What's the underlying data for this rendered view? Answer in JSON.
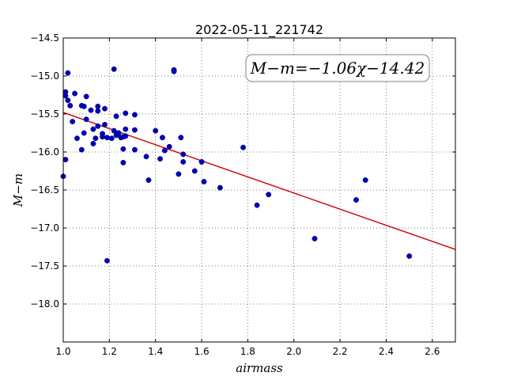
{
  "chart_data": {
    "type": "scatter",
    "title": "2022-05-11_221742",
    "xlabel": "airmass",
    "ylabel": "M−m",
    "xlim": [
      1.0,
      2.7
    ],
    "ylim": [
      -18.5,
      -14.5
    ],
    "y_inverted": true,
    "grid": true,
    "x_ticks": [
      1.0,
      1.2,
      1.4,
      1.6,
      1.8,
      2.0,
      2.2,
      2.4,
      2.6
    ],
    "x_tick_labels": [
      "1.0",
      "1.2",
      "1.4",
      "1.6",
      "1.8",
      "2.0",
      "2.2",
      "2.4",
      "2.6"
    ],
    "y_ticks": [
      -14.5,
      -15.0,
      -15.5,
      -16.0,
      -16.5,
      -17.0,
      -17.5,
      -18.0
    ],
    "y_tick_labels": [
      "−14.5",
      "−15.0",
      "−15.5",
      "−16.0",
      "−16.5",
      "−17.0",
      "−17.5",
      "−18.0"
    ],
    "annotation": "M−m=−1.06χ−14.42",
    "annotation_position": "top-right",
    "fit": {
      "slope": -1.06,
      "intercept": -14.42,
      "color": "#cc0000"
    },
    "point_color": "#0000bb",
    "points": [
      [
        1.0,
        -16.32
      ],
      [
        1.01,
        -16.1
      ],
      [
        1.01,
        -15.21
      ],
      [
        1.01,
        -15.26
      ],
      [
        1.02,
        -14.96
      ],
      [
        1.02,
        -15.32
      ],
      [
        1.03,
        -15.39
      ],
      [
        1.04,
        -15.6
      ],
      [
        1.05,
        -15.23
      ],
      [
        1.06,
        -15.82
      ],
      [
        1.08,
        -15.39
      ],
      [
        1.08,
        -15.97
      ],
      [
        1.09,
        -15.4
      ],
      [
        1.09,
        -15.75
      ],
      [
        1.1,
        -15.27
      ],
      [
        1.1,
        -15.57
      ],
      [
        1.12,
        -15.45
      ],
      [
        1.13,
        -15.7
      ],
      [
        1.13,
        -15.89
      ],
      [
        1.14,
        -15.82
      ],
      [
        1.15,
        -15.4
      ],
      [
        1.15,
        -15.46
      ],
      [
        1.15,
        -15.66
      ],
      [
        1.17,
        -15.8
      ],
      [
        1.17,
        -15.76
      ],
      [
        1.18,
        -15.43
      ],
      [
        1.18,
        -15.64
      ],
      [
        1.19,
        -15.81
      ],
      [
        1.19,
        -17.43
      ],
      [
        1.21,
        -15.82
      ],
      [
        1.22,
        -14.91
      ],
      [
        1.22,
        -15.72
      ],
      [
        1.23,
        -15.78
      ],
      [
        1.23,
        -15.53
      ],
      [
        1.24,
        -15.75
      ],
      [
        1.25,
        -15.81
      ],
      [
        1.26,
        -15.8
      ],
      [
        1.26,
        -16.14
      ],
      [
        1.26,
        -15.96
      ],
      [
        1.27,
        -15.49
      ],
      [
        1.27,
        -15.7
      ],
      [
        1.27,
        -15.79
      ],
      [
        1.31,
        -15.97
      ],
      [
        1.31,
        -15.51
      ],
      [
        1.31,
        -15.71
      ],
      [
        1.36,
        -16.06
      ],
      [
        1.37,
        -16.37
      ],
      [
        1.4,
        -15.72
      ],
      [
        1.42,
        -16.09
      ],
      [
        1.43,
        -15.81
      ],
      [
        1.44,
        -15.98
      ],
      [
        1.46,
        -15.93
      ],
      [
        1.48,
        -14.92
      ],
      [
        1.48,
        -14.94
      ],
      [
        1.5,
        -16.29
      ],
      [
        1.51,
        -15.81
      ],
      [
        1.52,
        -16.13
      ],
      [
        1.52,
        -16.03
      ],
      [
        1.57,
        -16.25
      ],
      [
        1.6,
        -16.13
      ],
      [
        1.61,
        -16.39
      ],
      [
        1.68,
        -16.47
      ],
      [
        1.78,
        -15.94
      ],
      [
        1.84,
        -16.7
      ],
      [
        1.89,
        -16.56
      ],
      [
        2.09,
        -17.14
      ],
      [
        2.27,
        -16.63
      ],
      [
        2.31,
        -16.37
      ],
      [
        2.5,
        -17.37
      ]
    ]
  }
}
